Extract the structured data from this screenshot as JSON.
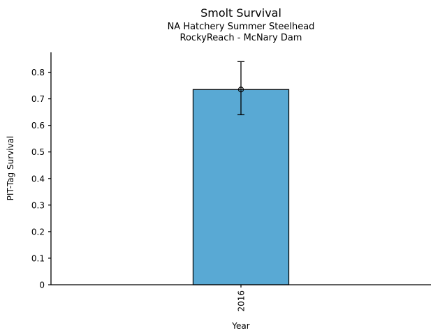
{
  "chart_data": {
    "type": "bar",
    "title": "Smolt Survival",
    "subtitle": [
      "NA Hatchery Summer Steelhead",
      "RockyReach - McNary Dam"
    ],
    "xlabel": "Year",
    "ylabel": "PIT-Tag Survival",
    "categories": [
      "2016"
    ],
    "values": [
      0.735
    ],
    "error_lower": [
      0.64
    ],
    "error_upper": [
      0.84
    ],
    "ylim": [
      0,
      0.875
    ],
    "yticks": [
      0,
      0.1,
      0.2,
      0.3,
      0.4,
      0.5,
      0.6,
      0.7,
      0.8
    ],
    "ytick_labels": [
      "0",
      "0.1",
      "0.2",
      "0.3",
      "0.4",
      "0.5",
      "0.6",
      "0.7",
      "0.8"
    ],
    "xtick_rotation": 90,
    "grid": false,
    "legend": false,
    "bar_color": "#59A9D4",
    "bar_edge_color": "#000000",
    "error_color": "#000000",
    "marker": "open-circle"
  }
}
